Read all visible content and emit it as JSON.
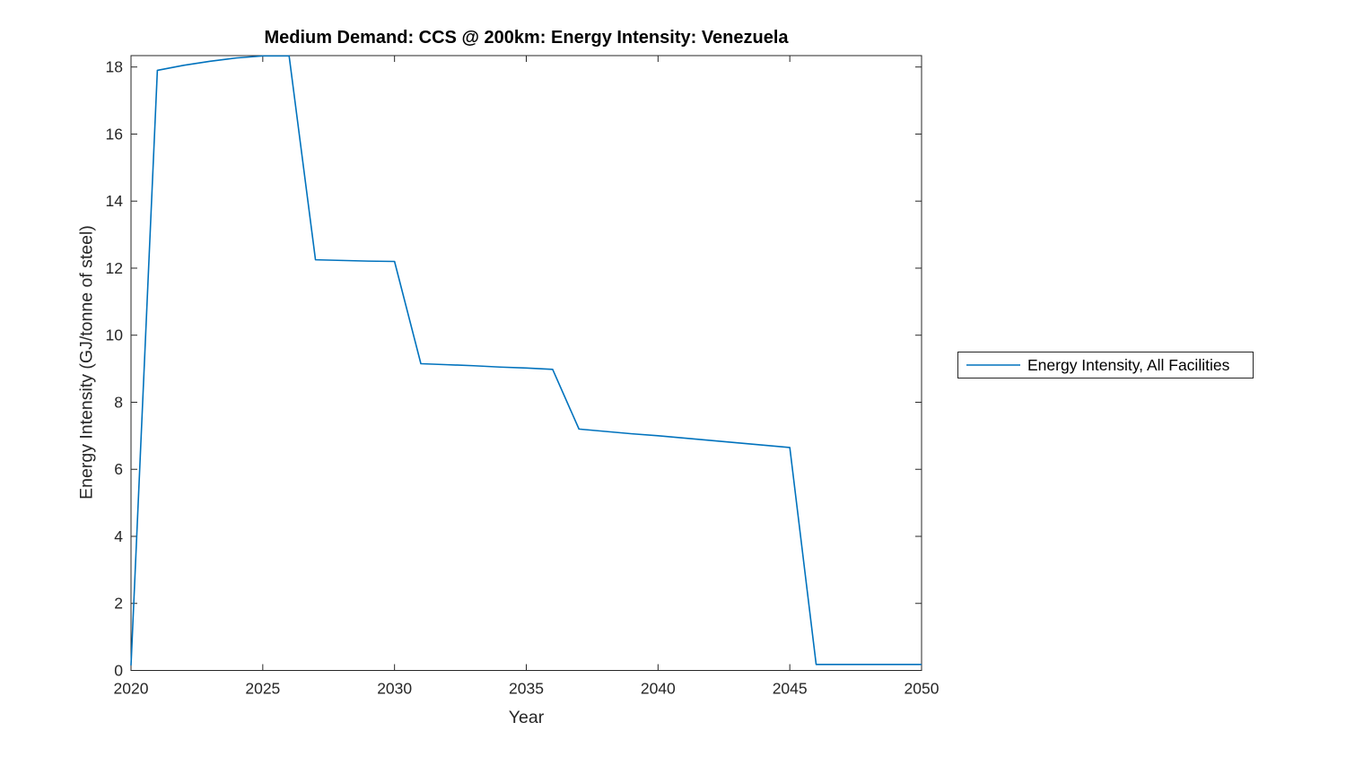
{
  "chart_data": {
    "type": "line",
    "title": "Medium Demand: CCS @ 200km: Energy Intensity: Venezuela",
    "xlabel": "Year",
    "ylabel": "Energy Intensity (GJ/tonne of steel)",
    "xlim": [
      2020,
      2050
    ],
    "ylim": [
      0,
      18.34
    ],
    "xticks": [
      2020,
      2025,
      2030,
      2035,
      2040,
      2045,
      2050
    ],
    "yticks": [
      0,
      2,
      4,
      6,
      8,
      10,
      12,
      14,
      16,
      18
    ],
    "grid": false,
    "box": true,
    "axis_color": "#262626",
    "background_color": "#ffffff",
    "legend": {
      "position": "outside-right",
      "entries": [
        {
          "label": "Energy Intensity, All Facilities",
          "color": "#0072BD"
        }
      ]
    },
    "series": [
      {
        "name": "Energy Intensity, All Facilities",
        "color": "#0072BD",
        "x": [
          2020,
          2021,
          2022,
          2023,
          2024,
          2025,
          2026,
          2027,
          2028,
          2029,
          2030,
          2031,
          2032,
          2033,
          2034,
          2035,
          2036,
          2037,
          2038,
          2039,
          2040,
          2041,
          2042,
          2043,
          2044,
          2045,
          2046,
          2047,
          2048,
          2049,
          2050
        ],
        "y": [
          0.15,
          17.9,
          18.05,
          18.17,
          18.27,
          18.33,
          18.33,
          12.25,
          12.23,
          12.21,
          12.2,
          9.15,
          9.12,
          9.09,
          9.05,
          9.02,
          8.98,
          7.2,
          7.13,
          7.06,
          7.0,
          6.93,
          6.86,
          6.79,
          6.72,
          6.65,
          0.18,
          0.18,
          0.18,
          0.18,
          0.18
        ]
      }
    ]
  }
}
